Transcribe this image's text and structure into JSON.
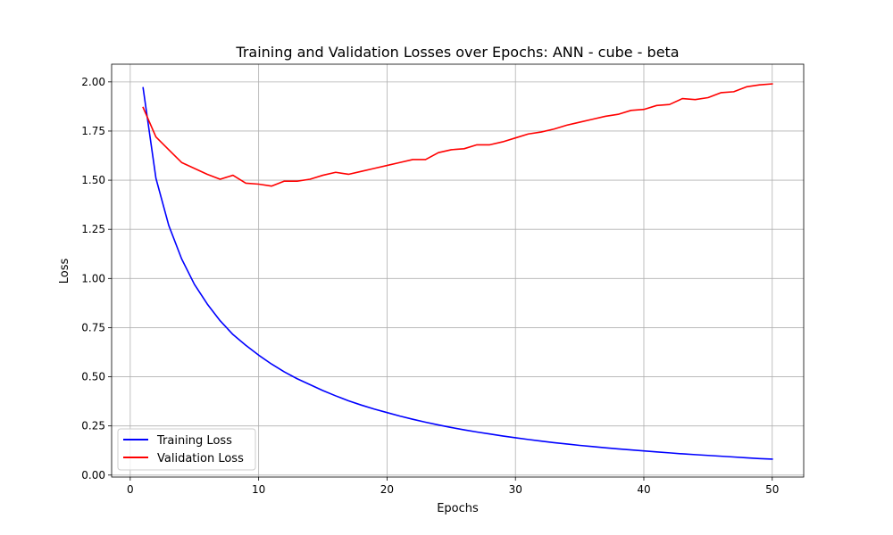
{
  "chart_data": {
    "type": "line",
    "title": "Training and Validation Losses over Epochs: ANN - cube - beta",
    "xlabel": "Epochs",
    "ylabel": "Loss",
    "xlim": [
      -1.45,
      52.45
    ],
    "ylim": [
      -0.01,
      2.09
    ],
    "xticks": [
      0,
      10,
      20,
      30,
      40,
      50
    ],
    "xtick_labels": [
      "0",
      "10",
      "20",
      "30",
      "40",
      "50"
    ],
    "yticks": [
      0,
      0.25,
      0.5,
      0.75,
      1.0,
      1.25,
      1.5,
      1.75,
      2.0
    ],
    "ytick_labels": [
      "0.00",
      "0.25",
      "0.50",
      "0.75",
      "1.00",
      "1.25",
      "1.50",
      "1.75",
      "2.00"
    ],
    "grid": true,
    "legend_position": "lower-left",
    "x": [
      1,
      2,
      3,
      4,
      5,
      6,
      7,
      8,
      9,
      10,
      11,
      12,
      13,
      14,
      15,
      16,
      17,
      18,
      19,
      20,
      21,
      22,
      23,
      24,
      25,
      26,
      27,
      28,
      29,
      30,
      31,
      32,
      33,
      34,
      35,
      36,
      37,
      38,
      39,
      40,
      41,
      42,
      43,
      44,
      45,
      46,
      47,
      48,
      49,
      50
    ],
    "series": [
      {
        "name": "Training Loss",
        "color": "#0000ff",
        "values": [
          1.97,
          1.51,
          1.27,
          1.1,
          0.97,
          0.87,
          0.785,
          0.715,
          0.66,
          0.61,
          0.565,
          0.525,
          0.49,
          0.46,
          0.43,
          0.403,
          0.378,
          0.356,
          0.336,
          0.318,
          0.3,
          0.284,
          0.269,
          0.255,
          0.242,
          0.23,
          0.219,
          0.209,
          0.199,
          0.19,
          0.181,
          0.173,
          0.165,
          0.158,
          0.151,
          0.145,
          0.139,
          0.133,
          0.128,
          0.123,
          0.118,
          0.113,
          0.108,
          0.104,
          0.1,
          0.096,
          0.092,
          0.088,
          0.084,
          0.081
        ]
      },
      {
        "name": "Validation Loss",
        "color": "#ff0000",
        "values": [
          1.87,
          1.72,
          1.655,
          1.59,
          1.56,
          1.53,
          1.505,
          1.525,
          1.485,
          1.48,
          1.47,
          1.495,
          1.495,
          1.505,
          1.525,
          1.54,
          1.53,
          1.545,
          1.56,
          1.575,
          1.59,
          1.605,
          1.605,
          1.64,
          1.655,
          1.66,
          1.68,
          1.68,
          1.695,
          1.715,
          1.735,
          1.745,
          1.76,
          1.78,
          1.795,
          1.81,
          1.825,
          1.835,
          1.855,
          1.86,
          1.88,
          1.885,
          1.915,
          1.91,
          1.92,
          1.945,
          1.95,
          1.975,
          1.985,
          1.99
        ]
      }
    ]
  }
}
